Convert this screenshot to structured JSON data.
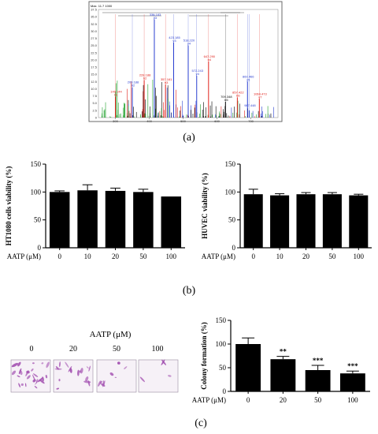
{
  "panel_labels": {
    "a": "(a)",
    "b": "(b)",
    "c": "(c)"
  },
  "colors": {
    "bar": "#000000",
    "spectrum_red": "#e0201a",
    "spectrum_blue": "#2a3fd0",
    "spectrum_green": "#1ea02a",
    "stain": "#a24fb0"
  },
  "chart_data": [
    {
      "id": "spectrum",
      "type": "line",
      "title": "",
      "xlabel": "",
      "ylabel": "",
      "x_ticks": [
        "300",
        "400",
        "500",
        "600",
        "700"
      ],
      "y_ticks": [
        "0",
        "2.5",
        "5.0",
        "7.5",
        "10.0",
        "12.5",
        "15.0",
        "17.5",
        "20.0",
        "22.5",
        "25.0",
        "27.5",
        "30.0",
        "32.5",
        "35.0",
        "37.5"
      ],
      "peak_labels": [
        {
          "text": "Max. 11.7 1000",
          "x": 0,
          "y": 37.5,
          "color": "#000000"
        },
        {
          "text": "140.144 b1",
          "x": 300,
          "y": 7.2,
          "color": "#e0201a"
        },
        {
          "text": "209.188 b2",
          "x": 350,
          "y": 10.5,
          "color": "#2a3fd0"
        },
        {
          "text": "228.188 b2",
          "x": 385,
          "y": 13.0,
          "color": "#e0201a"
        },
        {
          "text": "336.183 y3",
          "x": 415,
          "y": 34.0,
          "color": "#2a3fd0"
        },
        {
          "text": "357.161 b3",
          "x": 448,
          "y": 11.5,
          "color": "#e0201a"
        },
        {
          "text": "423.185 y3",
          "x": 472,
          "y": 26.0,
          "color": "#2a3fd0"
        },
        {
          "text": "518.220 y4",
          "x": 515,
          "y": 25.0,
          "color": "#2a3fd0"
        },
        {
          "text": "572.243 y4",
          "x": 540,
          "y": 14.5,
          "color": "#2a3fd0"
        },
        {
          "text": "647.290 b4",
          "x": 575,
          "y": 19.5,
          "color": "#e0201a"
        },
        {
          "text": "709.348 b5",
          "x": 625,
          "y": 5.5,
          "color": "#000000"
        },
        {
          "text": "857.422 b6",
          "x": 660,
          "y": 7.0,
          "color": "#e0201a"
        },
        {
          "text": "860.466 y5",
          "x": 690,
          "y": 12.5,
          "color": "#2a3fd0"
        },
        {
          "text": "1064.473 y7",
          "x": 725,
          "y": 6.5,
          "color": "#e0201a"
        },
        {
          "text": "987.448",
          "x": 695,
          "y": 2.5,
          "color": "#2a3fd0"
        }
      ]
    },
    {
      "id": "ht1080",
      "type": "bar",
      "title": "",
      "xlabel": "AATP (μM)",
      "ylabel": "HT1080 cells viability (%)",
      "categories": [
        "0",
        "10",
        "20",
        "50",
        "100"
      ],
      "values": [
        100,
        103,
        102,
        100,
        92
      ],
      "errors": [
        2,
        10,
        5,
        5,
        0
      ],
      "ylim": [
        0,
        150
      ],
      "yticks": [
        "0",
        "50",
        "100",
        "150"
      ],
      "legend": "none"
    },
    {
      "id": "huvec",
      "type": "bar",
      "title": "",
      "xlabel": "AATP (μM)",
      "ylabel": "HUVEC viability (%)",
      "categories": [
        "0",
        "10",
        "20",
        "50",
        "100"
      ],
      "values": [
        96,
        94,
        96,
        96,
        94
      ],
      "errors": [
        9,
        3,
        3,
        3,
        2
      ],
      "ylim": [
        0,
        150
      ],
      "yticks": [
        "0",
        "50",
        "100",
        "150"
      ],
      "legend": "none"
    },
    {
      "id": "colony",
      "type": "bar",
      "title": "",
      "xlabel": "AATP (μM)",
      "ylabel": "Colony formation (%)",
      "categories": [
        "0",
        "20",
        "50",
        "100"
      ],
      "values": [
        100,
        68,
        45,
        38
      ],
      "errors": [
        13,
        6,
        10,
        5
      ],
      "significance": [
        "",
        "**",
        "***",
        "***"
      ],
      "ylim": [
        0,
        150
      ],
      "yticks": [
        "0",
        "50",
        "100",
        "150"
      ],
      "legend": "none"
    }
  ],
  "micrographs": {
    "header": "AATP (μM)",
    "labels": [
      "0",
      "20",
      "50",
      "100"
    ]
  }
}
